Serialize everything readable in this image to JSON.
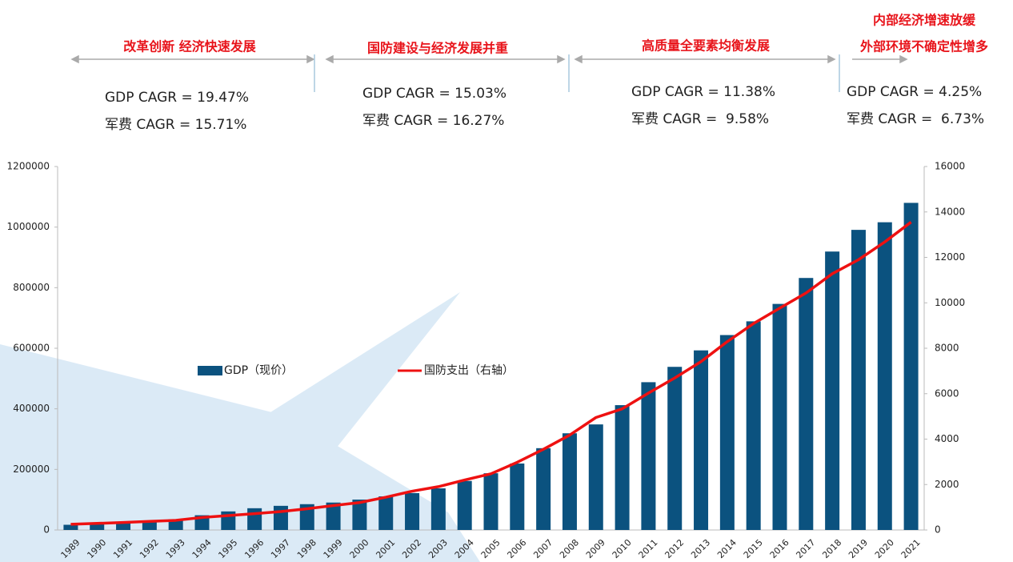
{
  "chart_data": {
    "type": "bar",
    "categories": [
      "1989",
      "1990",
      "1991",
      "1992",
      "1993",
      "1994",
      "1995",
      "1996",
      "1997",
      "1998",
      "1999",
      "2000",
      "2001",
      "2002",
      "2003",
      "2004",
      "2005",
      "2006",
      "2007",
      "2008",
      "2009",
      "2010",
      "2011",
      "2012",
      "2013",
      "2014",
      "2015",
      "2016",
      "2017",
      "2018",
      "2019",
      "2020",
      "2021"
    ],
    "series": [
      {
        "name": "GDP（现价）",
        "type": "bar",
        "color": "#0b527f",
        "values": [
          17180,
          18870,
          22010,
          27190,
          35670,
          48640,
          61340,
          71810,
          79720,
          85200,
          90560,
          100280,
          110860,
          121720,
          137420,
          161840,
          187320,
          219440,
          270090,
          319240,
          348520,
          412120,
          487940,
          538580,
          592960,
          643560,
          688860,
          746400,
          832040,
          919280,
          990870,
          1015990,
          1080000
        ]
      },
      {
        "name": "国防支出（右轴）",
        "type": "line",
        "axis": "y2",
        "color": "#ee1111",
        "values": [
          251,
          290,
          330,
          378,
          425,
          551,
          636,
          720,
          812,
          934,
          1076,
          1207,
          1442,
          1707,
          1907,
          2200,
          2474,
          2979,
          3554,
          4178,
          4951,
          5333,
          6027,
          6691,
          7410,
          8290,
          9088,
          9766,
          10432,
          11280,
          11899,
          12680,
          13553
        ]
      }
    ],
    "ylim": [
      0,
      1200000
    ],
    "yticks": [
      0,
      200000,
      400000,
      600000,
      800000,
      1000000,
      1200000
    ],
    "y2lim": [
      0,
      16000
    ],
    "y2ticks": [
      0,
      2000,
      4000,
      6000,
      8000,
      10000,
      12000,
      14000,
      16000
    ],
    "periods": [
      {
        "title": [
          "改革创新 经济快速发展"
        ],
        "gdp": "GDP CAGR = 19.47%",
        "mil": "军费 CAGR = 15.71%"
      },
      {
        "title": [
          "国防建设与经济发展并重"
        ],
        "gdp": "GDP CAGR = 15.03%",
        "mil": "军费 CAGR = 16.27%"
      },
      {
        "title": [
          "高质量全要素均衡发展"
        ],
        "gdp": "GDP CAGR = 11.38%",
        "mil": "军费 CAGR =  9.58%"
      },
      {
        "title": [
          "内部经济增速放缓",
          "外部环境不确定性增多"
        ],
        "gdp": "GDP CAGR = 4.25%",
        "mil": "军费 CAGR =  6.73%"
      }
    ]
  }
}
